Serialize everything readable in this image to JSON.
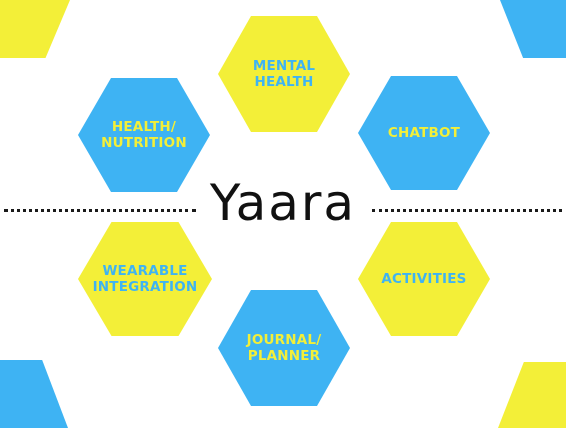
{
  "colors": {
    "blue": "#3eb3f3",
    "yellow": "#f3ef38",
    "blue_text": "#f3ef38",
    "yellow_text": "#3eb3f3"
  },
  "title": "Yaara",
  "nodes": {
    "mental_health": "MENTAL\nHEALTH",
    "health_nutrition": "HEALTH/\nNUTRITION",
    "chatbot": "CHATBOT",
    "wearable_integration": "WEARABLE\nINTEGRATION",
    "activities": "ACTIVITIES",
    "journal_planner": "JOURNAL/\nPLANNER"
  }
}
